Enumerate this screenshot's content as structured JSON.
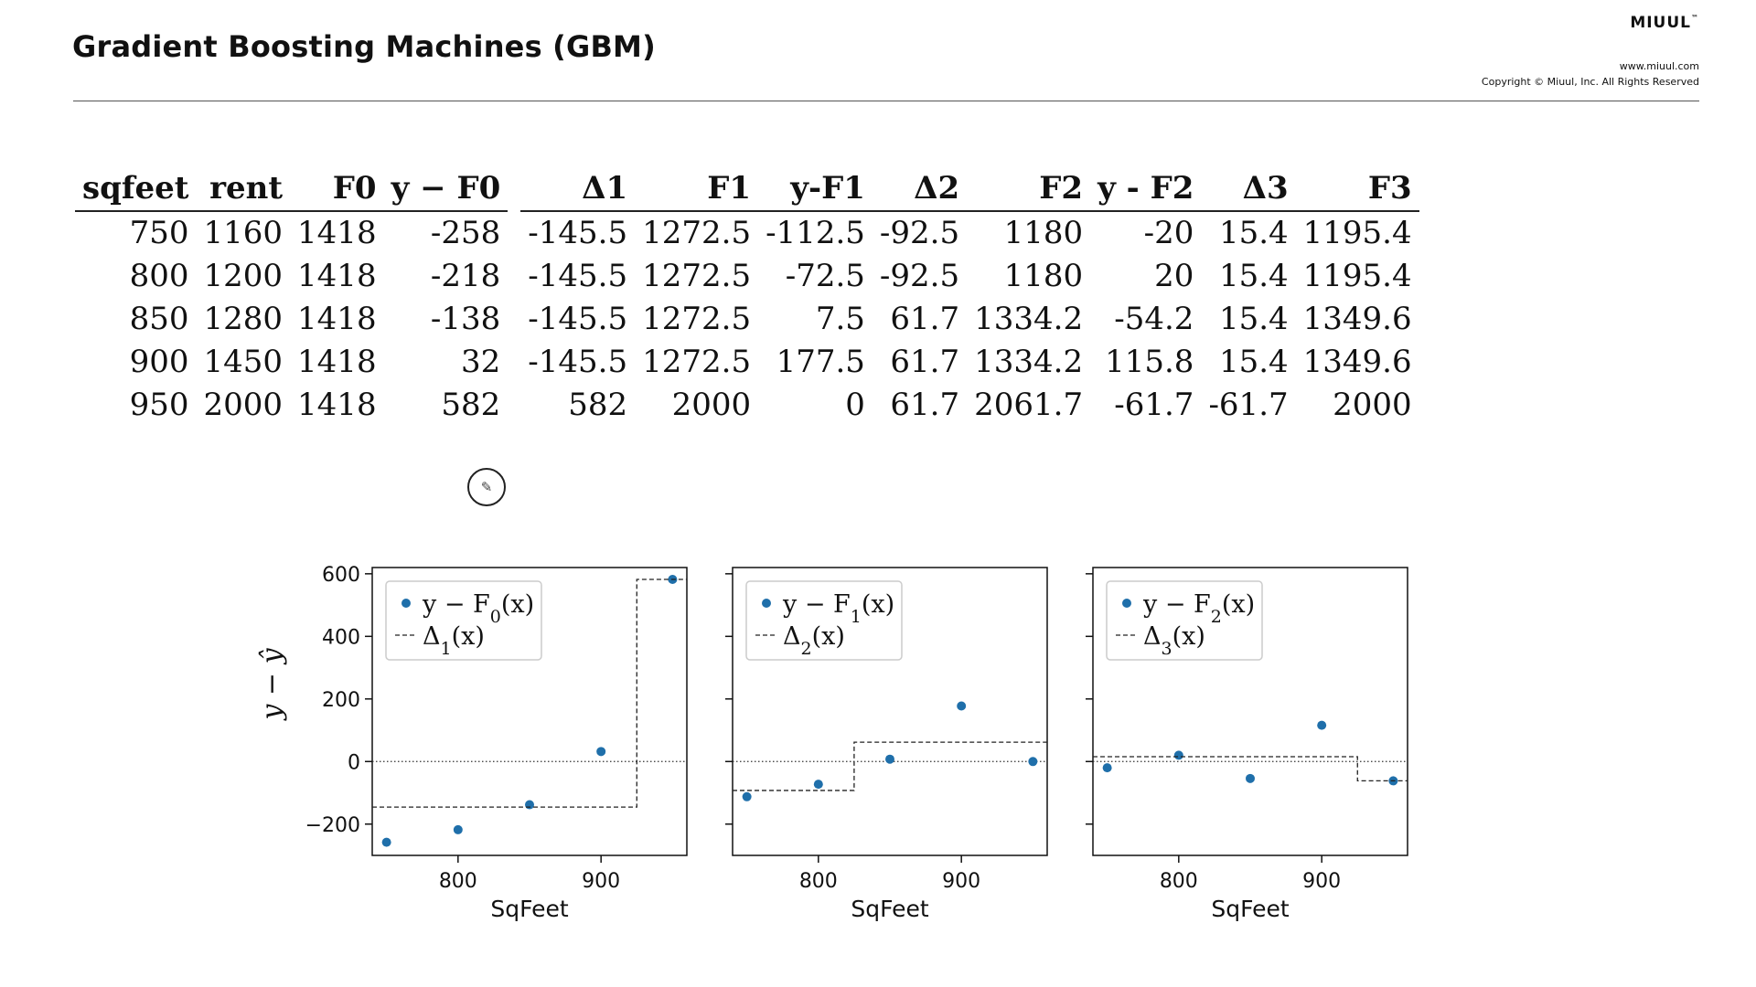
{
  "header": {
    "title": "Gradient Boosting Machines (GBM)",
    "brand": "MIUUL",
    "brand_tm": "™",
    "site": "www.miuul.com",
    "copyright": "Copyright © Miuul, Inc. All Rights Reserved"
  },
  "table": {
    "columns": [
      "sqfeet",
      "rent",
      "F0",
      "y − F0",
      "Δ1",
      "F1",
      "y-F1",
      "Δ2",
      "F2",
      "y - F2",
      "Δ3",
      "F3"
    ],
    "rows": [
      [
        "750",
        "1160",
        "1418",
        "-258",
        "-145.5",
        "1272.5",
        "-112.5",
        "-92.5",
        "1180",
        "-20",
        "15.4",
        "1195.4"
      ],
      [
        "800",
        "1200",
        "1418",
        "-218",
        "-145.5",
        "1272.5",
        "-72.5",
        "-92.5",
        "1180",
        "20",
        "15.4",
        "1195.4"
      ],
      [
        "850",
        "1280",
        "1418",
        "-138",
        "-145.5",
        "1272.5",
        "7.5",
        "61.7",
        "1334.2",
        "-54.2",
        "15.4",
        "1349.6"
      ],
      [
        "900",
        "1450",
        "1418",
        "32",
        "-145.5",
        "1272.5",
        "177.5",
        "61.7",
        "1334.2",
        "115.8",
        "15.4",
        "1349.6"
      ],
      [
        "950",
        "2000",
        "1418",
        "582",
        "582",
        "2000",
        "0",
        "61.7",
        "2061.7",
        "-61.7",
        "-61.7",
        "2000"
      ]
    ]
  },
  "icons": {
    "annotation_tool": "pencil-icon"
  },
  "chart_data": [
    {
      "type": "scatter",
      "xlabel": "SqFeet",
      "ylabel": "y − ŷ",
      "xticks": [
        800,
        900
      ],
      "yticks": [
        -200,
        0,
        200,
        400,
        600
      ],
      "ytick_labels": [
        "−200",
        "0",
        "200",
        "400",
        "600"
      ],
      "xlim": [
        740,
        960
      ],
      "ylim": [
        -300,
        620
      ],
      "legend_position": "upper-left",
      "series": [
        {
          "name": "y − F0(x)",
          "style": "points",
          "color": "#1f6faa",
          "x": [
            750,
            800,
            850,
            900,
            950
          ],
          "y": [
            -258,
            -218,
            -138,
            32,
            582
          ]
        },
        {
          "name": "Δ1(x)",
          "style": "dashed-step",
          "color": "#222222",
          "x": [
            740,
            925,
            925,
            960
          ],
          "y": [
            -145.5,
            -145.5,
            582,
            582
          ]
        }
      ],
      "baseline": 0
    },
    {
      "type": "scatter",
      "xlabel": "SqFeet",
      "xticks": [
        800,
        900
      ],
      "xlim": [
        740,
        960
      ],
      "ylim": [
        -300,
        620
      ],
      "legend_position": "upper-left",
      "series": [
        {
          "name": "y − F1(x)",
          "style": "points",
          "color": "#1f6faa",
          "x": [
            750,
            800,
            850,
            900,
            950
          ],
          "y": [
            -112.5,
            -72.5,
            7.5,
            177.5,
            0
          ]
        },
        {
          "name": "Δ2(x)",
          "style": "dashed-step",
          "color": "#222222",
          "x": [
            740,
            825,
            825,
            960
          ],
          "y": [
            -92.5,
            -92.5,
            61.7,
            61.7
          ]
        }
      ],
      "baseline": 0
    },
    {
      "type": "scatter",
      "xlabel": "SqFeet",
      "xticks": [
        800,
        900
      ],
      "xlim": [
        740,
        960
      ],
      "ylim": [
        -300,
        620
      ],
      "legend_position": "upper-left",
      "series": [
        {
          "name": "y − F2(x)",
          "style": "points",
          "color": "#1f6faa",
          "x": [
            750,
            800,
            850,
            900,
            950
          ],
          "y": [
            -20,
            20,
            -54.2,
            115.8,
            -61.7
          ]
        },
        {
          "name": "Δ3(x)",
          "style": "dashed-step",
          "color": "#222222",
          "x": [
            740,
            925,
            925,
            960
          ],
          "y": [
            15.4,
            15.4,
            -61.7,
            -61.7
          ]
        }
      ],
      "baseline": 0
    }
  ]
}
